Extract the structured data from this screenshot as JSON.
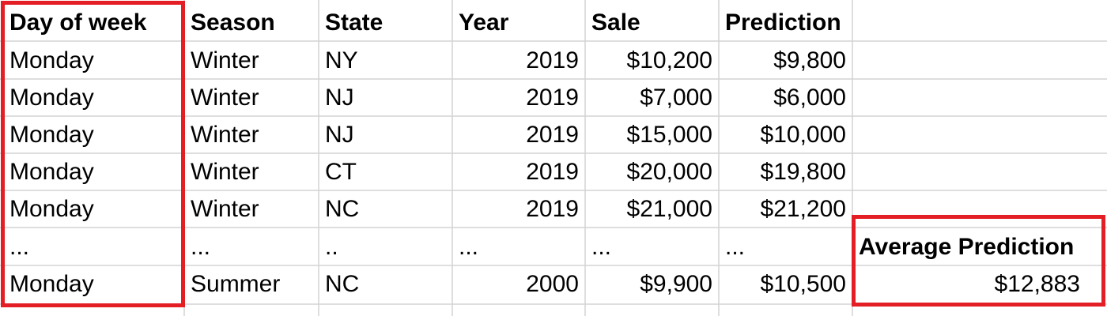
{
  "colors": {
    "gridline": "#d4d4d4",
    "highlight": "#e31e24",
    "text": "#000000"
  },
  "table": {
    "headers": [
      "Day of week",
      "Season",
      "State",
      "Year",
      "Sale",
      "Prediction"
    ],
    "rows": [
      [
        "Monday",
        "Winter",
        "NY",
        "2019",
        "$10,200",
        "$9,800"
      ],
      [
        "Monday",
        "Winter",
        "NJ",
        "2019",
        "$7,000",
        "$6,000"
      ],
      [
        "Monday",
        "Winter",
        "NJ",
        "2019",
        "$15,000",
        "$10,000"
      ],
      [
        "Monday",
        "Winter",
        "CT",
        "2019",
        "$20,000",
        "$19,800"
      ],
      [
        "Monday",
        "Winter",
        "NC",
        "2019",
        "$21,000",
        "$21,200"
      ],
      [
        "...",
        "...",
        "..",
        "...",
        "...",
        "..."
      ],
      [
        "Monday",
        "Summer",
        "NC",
        "2000",
        "$9,900",
        "$10,500"
      ]
    ]
  },
  "summary": {
    "label": "Average Prediction",
    "value": "$12,883"
  }
}
